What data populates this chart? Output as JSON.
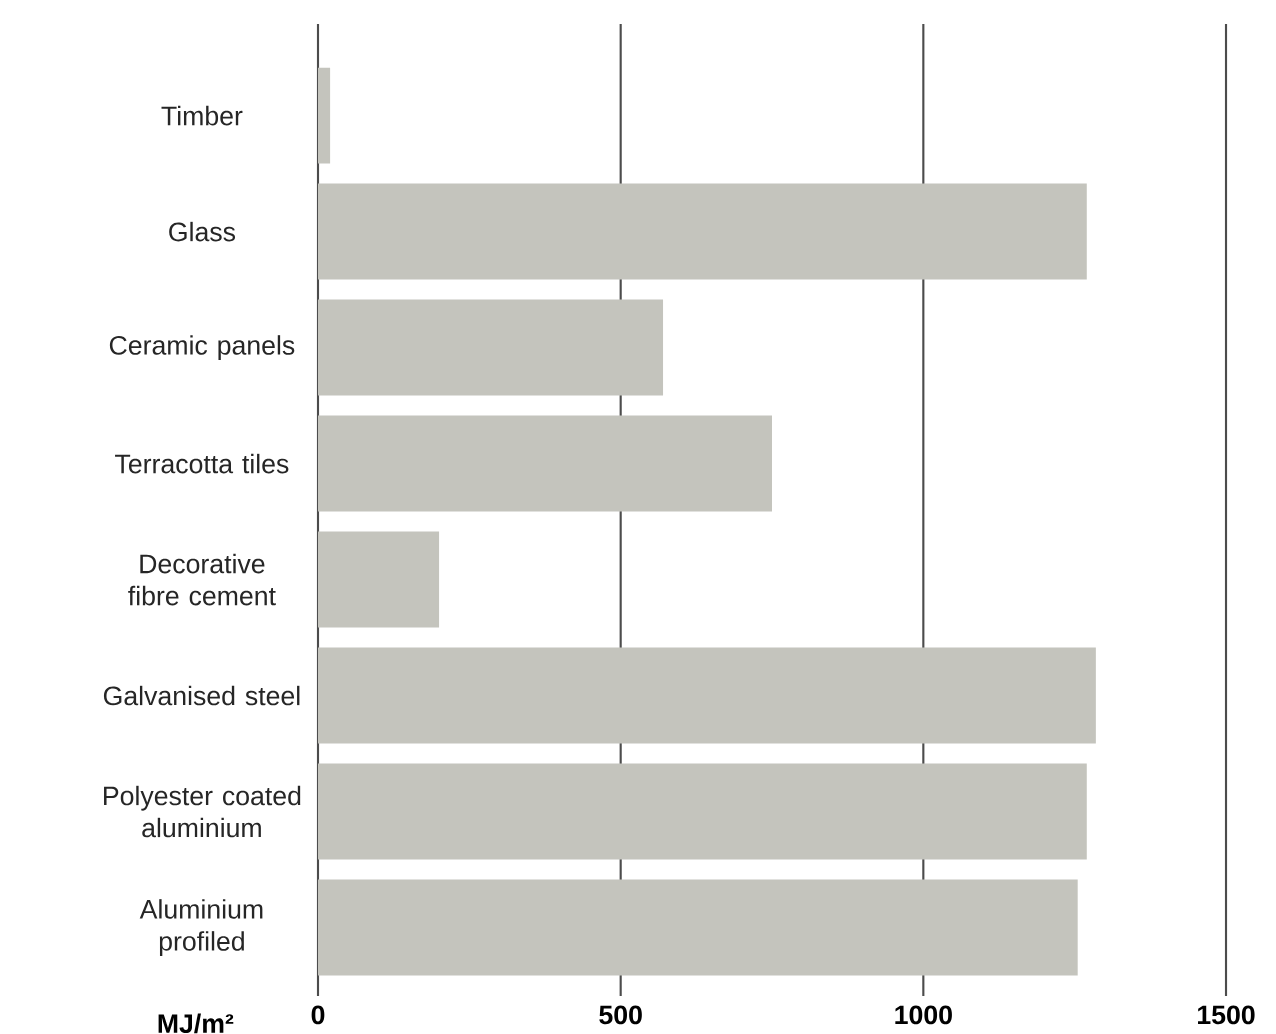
{
  "chart_data": {
    "type": "bar",
    "orientation": "horizontal",
    "xlabel": "MJ/m²",
    "categories": [
      "Timber",
      "Glass",
      "Ceramic panels",
      "Terracotta tiles",
      "Decorative fibre cement",
      "Galvanised steel",
      "Polyester coated aluminium",
      "Aluminium profiled"
    ],
    "values": [
      20,
      1270,
      570,
      750,
      200,
      1285,
      1270,
      1255
    ],
    "color": "#c4c4bd",
    "xlim": [
      0,
      1500
    ],
    "xticks": [
      0,
      500,
      1000,
      1500
    ],
    "grid": "x"
  }
}
